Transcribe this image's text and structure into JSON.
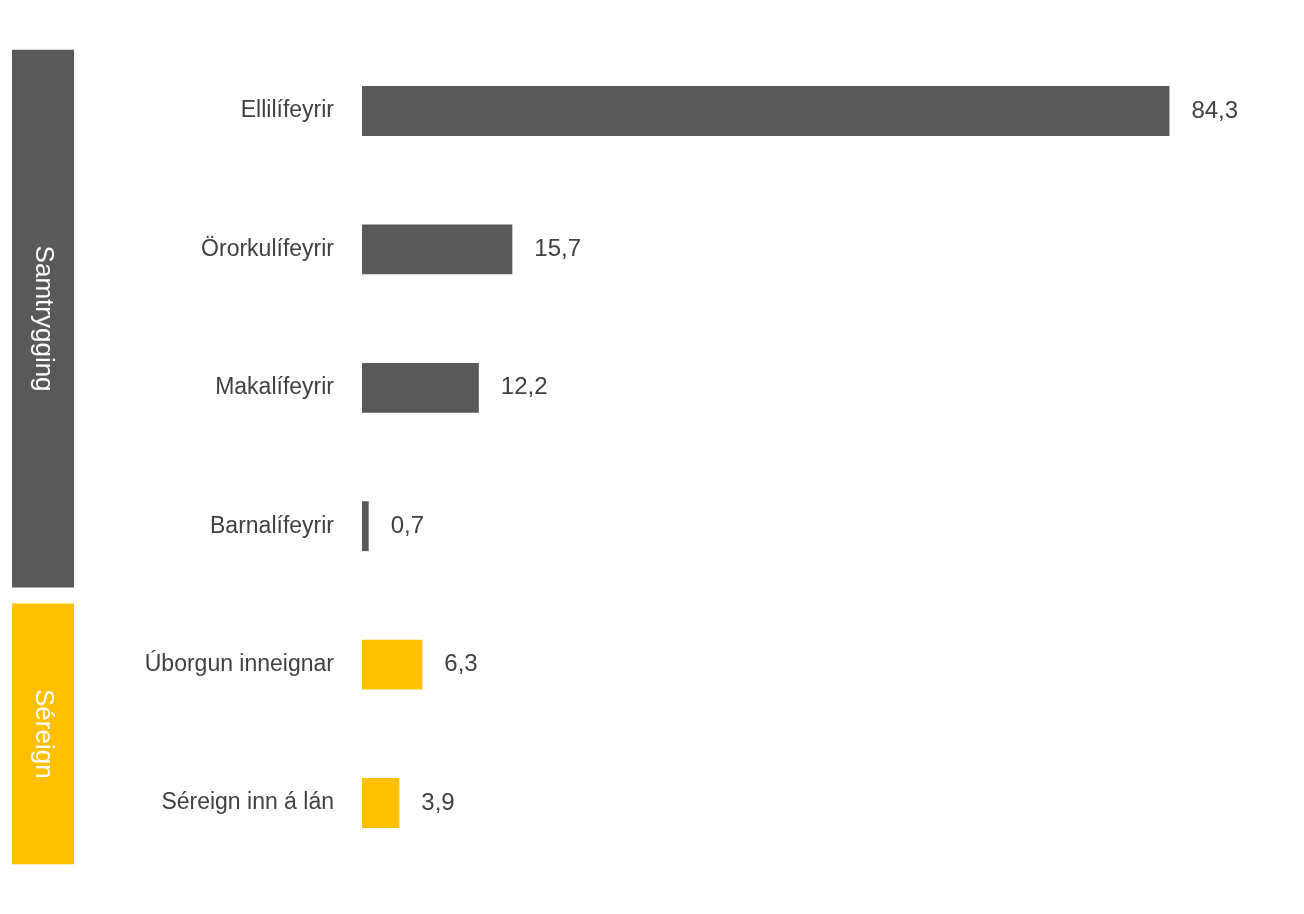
{
  "chart_data": {
    "type": "bar",
    "orientation": "horizontal",
    "categories": [
      "Ellilífeyrir",
      "Örorkulífeyrir",
      "Makalífeyrir",
      "Barnalífeyrir",
      "Úborgun inneignar",
      "Séreign inn á lán"
    ],
    "values": [
      84.3,
      15.7,
      12.2,
      0.7,
      6.3,
      3.9
    ],
    "colors": [
      "#595959",
      "#595959",
      "#595959",
      "#595959",
      "#ffc000",
      "#ffc000"
    ],
    "value_labels": [
      "84,3",
      "15,7",
      "12,2",
      "0,7",
      "6,3",
      "3,9"
    ],
    "annotations": [
      "Samtrygging",
      "Séreign"
    ],
    "tick_labels": "y",
    "grid": false,
    "legend": false
  }
}
